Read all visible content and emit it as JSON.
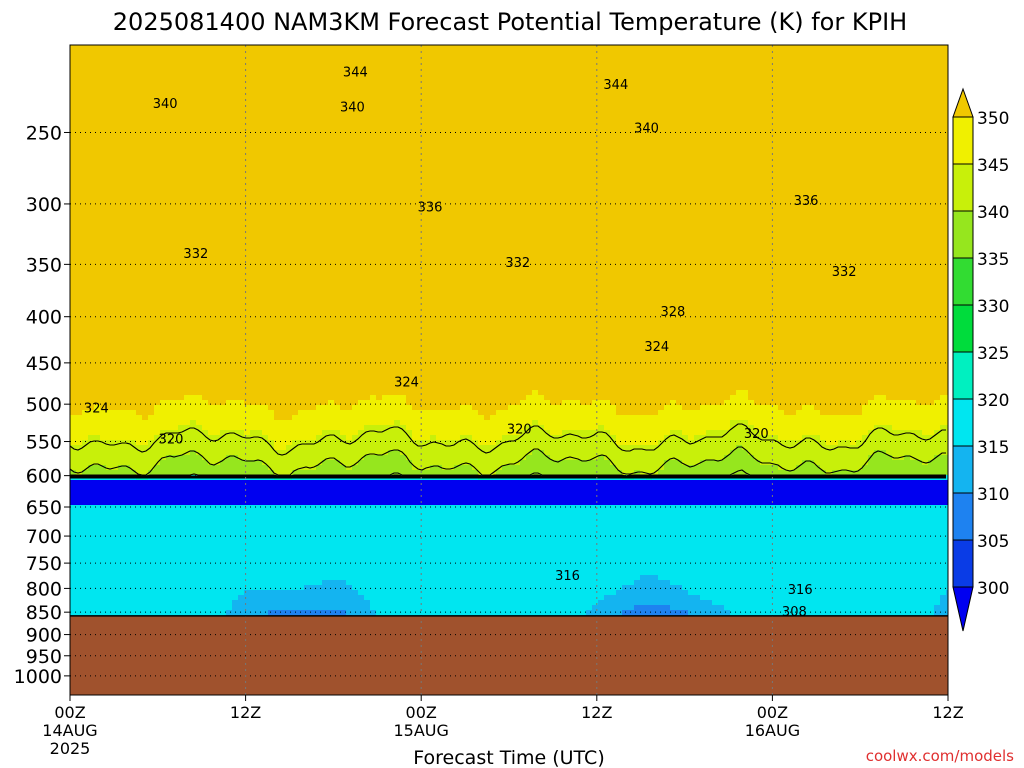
{
  "chart_data": {
    "type": "heatmap",
    "title": "2025081400 NAM3KM Forecast Potential Temperature (K) for KPIH",
    "xlabel": "Forecast Time (UTC)",
    "ylabel": "",
    "credit": "coolwx.com/models",
    "x_ticks": [
      {
        "hour": 0,
        "line1": "00Z",
        "line2": "14AUG",
        "line3": "2025"
      },
      {
        "hour": 12,
        "line1": "12Z",
        "line2": "",
        "line3": ""
      },
      {
        "hour": 24,
        "line1": "00Z",
        "line2": "15AUG",
        "line3": ""
      },
      {
        "hour": 36,
        "line1": "12Z",
        "line2": "",
        "line3": ""
      },
      {
        "hour": 48,
        "line1": "00Z",
        "line2": "16AUG",
        "line3": ""
      },
      {
        "hour": 60,
        "line1": "12Z",
        "line2": "",
        "line3": ""
      }
    ],
    "xlim": [
      0,
      60
    ],
    "y_axis": "pressure (hPa), log scale, decreasing upward",
    "ylim": [
      1050,
      200
    ],
    "y_ticks": [
      250,
      300,
      350,
      400,
      450,
      500,
      550,
      600,
      650,
      700,
      750,
      800,
      850,
      900,
      950,
      1000
    ],
    "grid": true,
    "terrain_top_hpa": 858,
    "terrain_color": "#a0522d",
    "colorbar": {
      "levels": [
        300,
        305,
        310,
        315,
        320,
        325,
        330,
        335,
        340,
        345,
        350
      ],
      "colors": [
        "#0000f0",
        "#0a3ce6",
        "#1e82f0",
        "#14b4f0",
        "#00e6f0",
        "#00f0c0",
        "#00dc3c",
        "#32dc32",
        "#96e61e",
        "#c8f00a",
        "#f0f000",
        "#f0c800"
      ],
      "extend": "both"
    },
    "contour_levels": [
      308,
      316,
      320,
      324,
      328,
      332,
      336,
      340,
      344
    ],
    "contour_labels": [
      {
        "value": 344,
        "hour": 19.5,
        "p": 214
      },
      {
        "value": 344,
        "hour": 37.3,
        "p": 221
      },
      {
        "value": 340,
        "hour": 6.5,
        "p": 232
      },
      {
        "value": 340,
        "hour": 19.3,
        "p": 234
      },
      {
        "value": 340,
        "hour": 39.4,
        "p": 247
      },
      {
        "value": 336,
        "hour": 24.6,
        "p": 302
      },
      {
        "value": 336,
        "hour": 50.3,
        "p": 297
      },
      {
        "value": 332,
        "hour": 8.6,
        "p": 340
      },
      {
        "value": 332,
        "hour": 30.6,
        "p": 348
      },
      {
        "value": 332,
        "hour": 52.9,
        "p": 356
      },
      {
        "value": 328,
        "hour": 41.2,
        "p": 394
      },
      {
        "value": 324,
        "hour": 40.1,
        "p": 431
      },
      {
        "value": 324,
        "hour": 23.0,
        "p": 472
      },
      {
        "value": 324,
        "hour": 1.8,
        "p": 504
      },
      {
        "value": 320,
        "hour": 30.7,
        "p": 532
      },
      {
        "value": 320,
        "hour": 46.9,
        "p": 538
      },
      {
        "value": 320,
        "hour": 6.9,
        "p": 546
      },
      {
        "value": 316,
        "hour": 34.0,
        "p": 773
      },
      {
        "value": 316,
        "hour": 49.9,
        "p": 801
      },
      {
        "value": 308,
        "hour": 49.5,
        "p": 848
      }
    ]
  }
}
